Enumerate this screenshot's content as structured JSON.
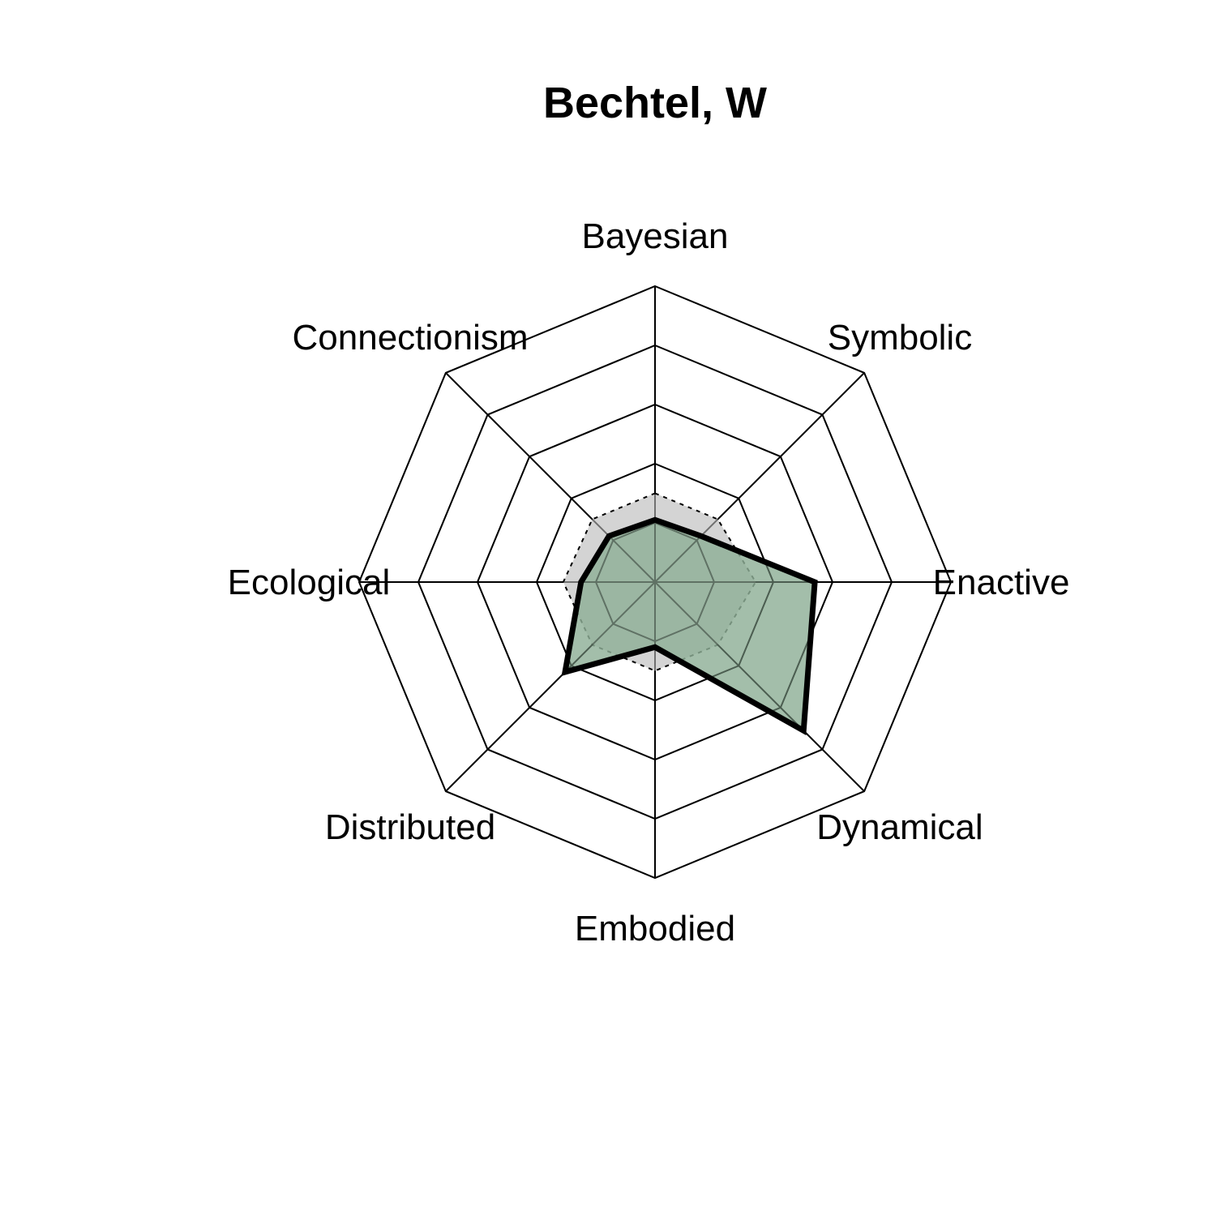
{
  "chart_data": {
    "type": "radar",
    "title": "Bechtel, W",
    "axes": [
      "Bayesian",
      "Symbolic",
      "Enactive",
      "Dynamical",
      "Embodied",
      "Distributed",
      "Ecological",
      "Connectionism"
    ],
    "rmax": 1,
    "rings": 5,
    "series": [
      {
        "values": [
          0.21,
          0.22,
          0.54,
          0.71,
          0.22,
          0.43,
          0.25,
          0.22
        ],
        "fill": "#8fb097",
        "stroke": "#000000",
        "style": "solid"
      },
      {
        "values": [
          0.3,
          0.3,
          0.34,
          0.3,
          0.3,
          0.3,
          0.31,
          0.3
        ],
        "fill": "#cccccc",
        "stroke": "#000000",
        "style": "dotted"
      }
    ]
  }
}
